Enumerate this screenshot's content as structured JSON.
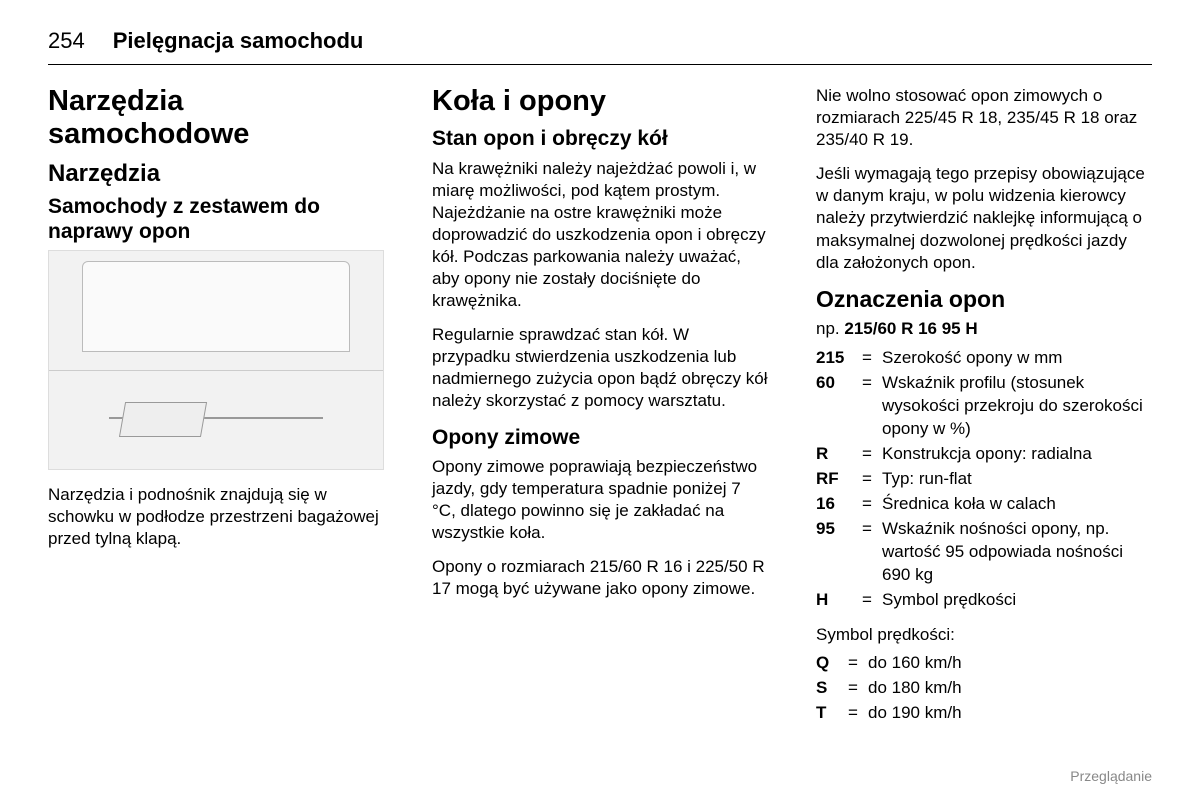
{
  "header": {
    "page_number": "254",
    "chapter_title": "Pielęgnacja samochodu"
  },
  "col1": {
    "main_heading": "Narzędzia samochodowe",
    "sub_heading": "Narzędzia",
    "sec_heading": "Samochody z zestawem do naprawy opon",
    "body1": "Narzędzia i podnośnik znajdują się w schowku w podłodze przestrzeni bagażowej przed tylną klapą."
  },
  "col2": {
    "main_heading": "Koła i opony",
    "sec1_heading": "Stan opon i obręczy kół",
    "sec1_p1": "Na krawężniki należy najeżdżać powoli i, w miarę możliwości, pod kątem prostym. Najeżdżanie na ostre krawężniki może doprowadzić do uszkodzenia opon i obręczy kół. Podczas parkowania należy uważać, aby opony nie zostały dociśnięte do krawężnika.",
    "sec1_p2": "Regularnie sprawdzać stan kół. W przypadku stwierdzenia uszkodzenia lub nadmiernego zużycia opon bądź obręczy kół należy skorzystać z pomocy warsztatu.",
    "sec2_heading": "Opony zimowe",
    "sec2_p1": "Opony zimowe poprawiają bezpieczeństwo jazdy, gdy temperatura spadnie poniżej 7 °C, dlatego powinno się je zakładać na wszystkie koła.",
    "sec2_p2": "Opony o rozmiarach 215/60 R 16 i 225/50 R 17 mogą być używane jako opony zimowe."
  },
  "col3": {
    "p1": "Nie wolno stosować opon zimowych o rozmiarach 225/45 R 18, 235/45 R 18 oraz 235/40 R 19.",
    "p2": "Jeśli wymagają tego przepisy obowiązujące w danym kraju, w polu widzenia kierowcy należy przytwierdzić naklejkę informującą o maksymalnej dozwolonej prędkości jazdy dla założonych opon.",
    "sec_heading": "Oznaczenia opon",
    "example_prefix": "np. ",
    "example_value": "215/60 R 16 95 H",
    "defs": [
      {
        "key": "215",
        "val": "Szerokość opony w mm"
      },
      {
        "key": "60",
        "val": "Wskaźnik profilu (stosunek wysokości przekroju do szerokości opony w %)"
      },
      {
        "key": "R",
        "val": "Konstrukcja opony: radialna"
      },
      {
        "key": "RF",
        "val": "Typ: run-flat"
      },
      {
        "key": "16",
        "val": "Średnica koła w calach"
      },
      {
        "key": "95",
        "val": "Wskaźnik nośności opony, np. wartość 95 odpowiada nośności 690 kg"
      },
      {
        "key": "H",
        "val": "Symbol prędkości"
      }
    ],
    "speed_label": "Symbol prędkości:",
    "speed_defs": [
      {
        "key": "Q",
        "val": "do 160 km/h"
      },
      {
        "key": "S",
        "val": "do 180 km/h"
      },
      {
        "key": "T",
        "val": "do 190 km/h"
      }
    ]
  },
  "footer": "Przeglądanie"
}
